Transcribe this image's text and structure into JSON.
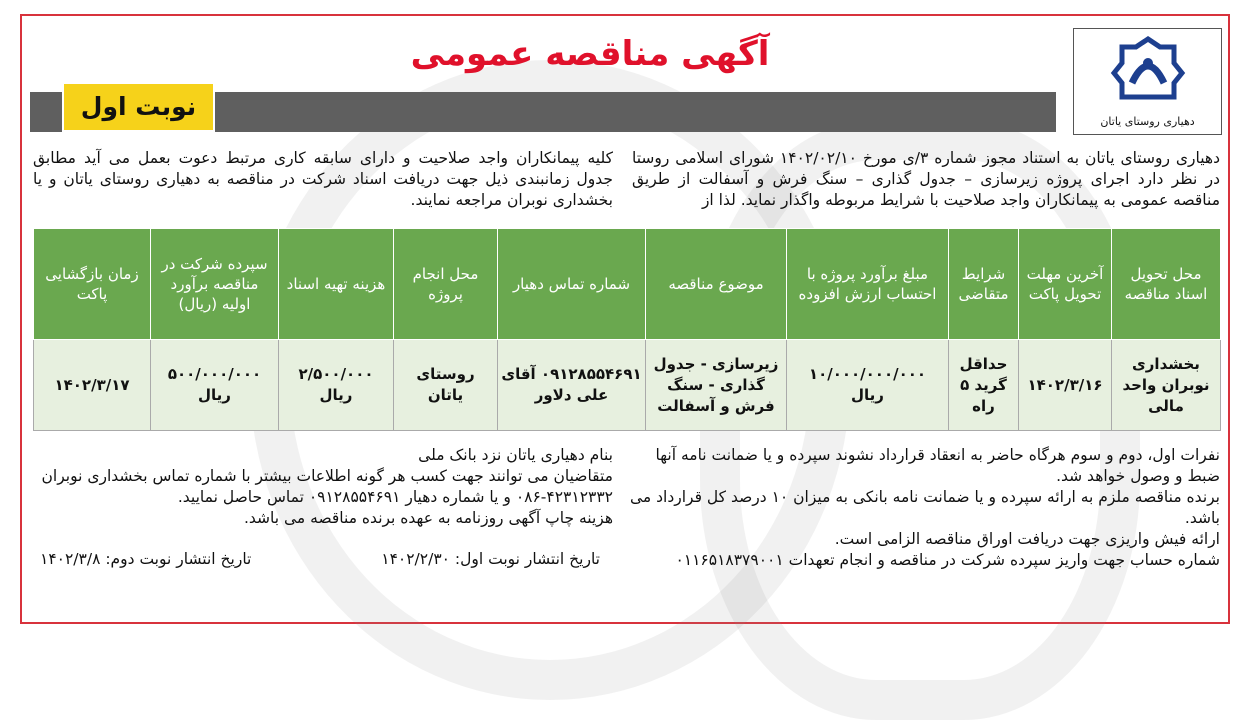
{
  "title": "آگهی مناقصه عمومی",
  "round_badge": "نوبت اول",
  "logo": {
    "caption": "دهیاری روستای یاتان",
    "logo_text": "دهیاری"
  },
  "intro_right": "دهیاری روستای یاتان به استناد مجوز شماره ۳/ی مورخ ۱۴۰۲/۰۲/۱۰ شورای اسلامی روستا در نظر دارد اجرای پروژه زیرسازی – جدول گذاری – سنگ فرش و آسفالت از طریق مناقصه عمومی به پیمانکاران واجد صلاحیت با شرایط مربوطه واگذار نماید. لذا از",
  "intro_left": "کلیه پیمانکاران واجد صلاحیت و دارای سابقه کاری مرتبط دعوت بعمل می آید مطابق جدول زمانبندی ذیل جهت دریافت اسناد شرکت در مناقصه به دهیاری روستای یاتان و یا بخشداری نوبران مراجعه نمایند.",
  "table": {
    "headers": [
      "محل تحویل اسناد مناقصه",
      "آخرین مهلت تحویل پاکت",
      "شرایط متقاضی",
      "مبلغ برآورد پروژه با احتساب ارزش افزوده",
      "موضوع مناقصه",
      "شماره تماس دهیار",
      "محل انجام پروژه",
      "هزینه تهیه اسناد",
      "سپرده شرکت در مناقصه برآورد اولیه (ریال)",
      "زمان بازگشایی پاکت"
    ],
    "row": [
      "بخشداری نوبران واحد مالی",
      "۱۴۰۲/۳/۱۶",
      "حداقل گرید ۵ راه",
      "۱۰/۰۰۰/۰۰۰/۰۰۰ ریال",
      "زیرسازی - جدول گذاری - سنگ فرش و آسفالت",
      "۰۹۱۲۸۵۵۴۶۹۱ آقای علی دلاور",
      "روستای یاتان",
      "۲/۵۰۰/۰۰۰ ریال",
      "۵۰۰/۰۰۰/۰۰۰ ریال",
      "۱۴۰۲/۳/۱۷"
    ]
  },
  "notes_right": [
    "نفرات اول، دوم و سوم هرگاه حاضر به انعقاد قرارداد نشوند سپرده و یا ضمانت نامه آنها ضبط و وصول خواهد شد.",
    "برنده مناقصه ملزم به ارائه سپرده و یا ضمانت نامه بانکی به میزان ۱۰ درصد کل قرارداد می باشد.",
    "ارائه فیش واریزی جهت دریافت اوراق مناقصه الزامی است.",
    "شماره حساب جهت واریز سپرده شرکت در مناقصه و انجام تعهدات ۰۱۱۶۵۱۸۳۷۹۰۰۱"
  ],
  "notes_left": [
    "بنام دهیاری یاتان نزد بانک ملی",
    "متقاضیان می توانند جهت کسب هر گونه اطلاعات بیشتر با شماره تماس بخشداری نوبران ۴۲۳۱۲۳۳۲-۰۸۶ و یا شماره دهیار ۰۹۱۲۸۵۵۴۶۹۱ تماس حاصل نمایید.",
    "هزینه چاپ آگهی روزنامه به عهده برنده مناقصه می باشد."
  ],
  "publish_first": "تاریخ انتشار نوبت اول: ۱۴۰۲/۲/۳۰",
  "publish_second": "تاریخ انتشار نوبت دوم: ۱۴۰۲/۳/۸",
  "colors": {
    "title": "#e0112b",
    "header_green": "#6aa84f",
    "badge_yellow": "#f6d21a",
    "border_red": "#d8323c"
  }
}
